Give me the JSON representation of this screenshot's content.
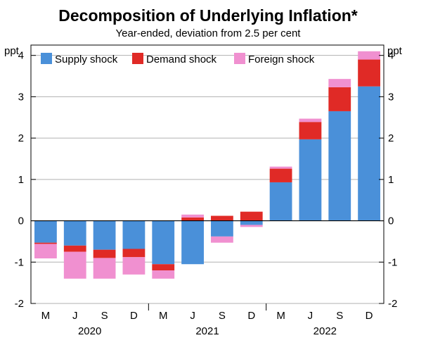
{
  "chart_data": {
    "type": "bar",
    "stacked": true,
    "title": "Decomposition of Underlying Inflation*",
    "subtitle": "Year-ended, deviation from 2.5 per cent",
    "yunit_left": "ppt",
    "yunit_right": "ppt",
    "ylim": [
      -2,
      4.25
    ],
    "yticks": [
      -2,
      -1,
      0,
      1,
      2,
      3,
      4
    ],
    "categories": [
      "M",
      "J",
      "S",
      "D",
      "M",
      "J",
      "S",
      "D",
      "M",
      "J",
      "S",
      "D"
    ],
    "year_labels": [
      {
        "label": "2020",
        "start": 0,
        "end": 3
      },
      {
        "label": "2021",
        "start": 4,
        "end": 7
      },
      {
        "label": "2022",
        "start": 8,
        "end": 11
      }
    ],
    "series": [
      {
        "name": "Supply shock",
        "color": "#4a90d9",
        "values": [
          -0.53,
          -0.6,
          -0.7,
          -0.68,
          -1.05,
          -1.05,
          -0.38,
          -0.1,
          0.93,
          1.97,
          2.65,
          3.25
        ]
      },
      {
        "name": "Demand shock",
        "color": "#e02a26",
        "values": [
          -0.03,
          -0.15,
          -0.2,
          -0.2,
          -0.15,
          0.08,
          0.12,
          0.22,
          0.33,
          0.42,
          0.58,
          0.65
        ]
      },
      {
        "name": "Foreign shock",
        "color": "#f090d0",
        "values": [
          -0.35,
          -0.65,
          -0.5,
          -0.42,
          -0.2,
          0.07,
          -0.15,
          -0.05,
          0.05,
          0.08,
          0.2,
          0.2
        ]
      }
    ],
    "legend_position": "top",
    "grid": true
  }
}
